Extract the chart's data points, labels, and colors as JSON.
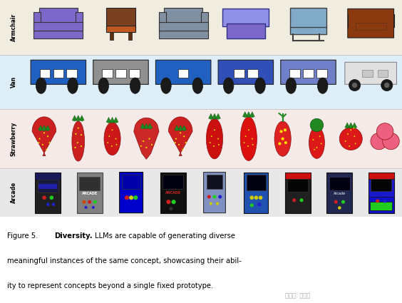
{
  "figure_bg": "#fdf6f0",
  "panel_bg": "#f5efe8",
  "row_labels": [
    "Armchair",
    "Van",
    "Strawberry",
    "Arcade"
  ],
  "row_colors": [
    "#f0ece0",
    "#ddeef8",
    "#f0eae8",
    "#e8e8e8"
  ],
  "caption_line1_pre": "Figure 5.",
  "caption_line1_bold": "Diversity.",
  "caption_line1_post": "LLMs are capable of generating diverse",
  "caption_line2": "meaningful instances of the same concept, showcasing their abil-",
  "caption_line3": "ity to represent concepts beyond a single fixed prototype.",
  "watermark": "公众号: 新智元",
  "armchairs": [
    {
      "body": "#7b68c8",
      "seat": "#7b68c8",
      "style": "normal"
    },
    {
      "body": "#7b4020",
      "seat": "#c05820",
      "style": "legs"
    },
    {
      "body": "#8090a0",
      "seat": "#8090a0",
      "style": "normal"
    },
    {
      "body": "#7b68c8",
      "seat": "#9090e8",
      "style": "boxy"
    },
    {
      "body": "#80aac8",
      "seat": "#80aac8",
      "style": "minimal"
    },
    {
      "body": "#8b3a10",
      "seat": "#8b3a10",
      "style": "round"
    }
  ],
  "vans": [
    {
      "color": "#2060c0",
      "style": "bus3win"
    },
    {
      "color": "#909090",
      "style": "bus3win"
    },
    {
      "color": "#2060c0",
      "style": "bus1win"
    },
    {
      "color": "#3050b8",
      "style": "bus2win"
    },
    {
      "color": "#7080c8",
      "style": "bus3win"
    },
    {
      "color": "#d8d8d8",
      "style": "van_side"
    }
  ],
  "berries": [
    {
      "color": "#cc2020",
      "style": "classic",
      "leaf": "#228822"
    },
    {
      "color": "#cc2020",
      "style": "tall_oval",
      "leaf": "#228822"
    },
    {
      "color": "#cc1818",
      "style": "oval_small",
      "leaf": "#228822"
    },
    {
      "color": "#cc2828",
      "style": "heart_flat",
      "leaf": "#228822"
    },
    {
      "color": "#cc2020",
      "style": "classic2",
      "leaf": "#228822"
    },
    {
      "color": "#cc1010",
      "style": "teardrop",
      "leaf": "#228822"
    },
    {
      "color": "#dd1010",
      "style": "big_oval",
      "leaf": "#228822"
    },
    {
      "color": "#dd2020",
      "style": "big_oval2",
      "leaf": "#ffcc00"
    },
    {
      "color": "#dd1818",
      "style": "round_top_green",
      "leaf": "#228822"
    },
    {
      "color": "#dd1818",
      "style": "round_dots",
      "leaf": "#228822"
    },
    {
      "color": "#ee6080",
      "style": "triple_blob",
      "leaf": "#228822"
    }
  ],
  "arcades": [
    {
      "body": "#202020",
      "accent": "#1a1a5a",
      "screen": "#000000",
      "style": "tall_black"
    },
    {
      "body": "#808080",
      "accent": "#606060",
      "screen": "#202020",
      "style": "grey_box"
    },
    {
      "body": "#0000cc",
      "accent": "#0000cc",
      "screen": "#0000cc",
      "style": "blue_handheld"
    },
    {
      "body": "#101010",
      "accent": "#cc1010",
      "screen": "#000000",
      "style": "black_red_text"
    },
    {
      "body": "#8090c0",
      "accent": "#6070a0",
      "screen": "#000000",
      "style": "purple_handheld"
    },
    {
      "body": "#2050b0",
      "accent": "#1040a0",
      "screen": "#000000",
      "style": "blue_cabinet"
    },
    {
      "body": "#202020",
      "accent": "#cc1010",
      "screen": "#000000",
      "style": "red_top"
    },
    {
      "body": "#202850",
      "accent": "#202850",
      "screen": "#000000",
      "style": "dark_blue",
      "label": "Arcade"
    },
    {
      "body": "#1010cc",
      "accent": "#cc1010",
      "screen": "#000000",
      "style": "blue_red_top"
    }
  ]
}
